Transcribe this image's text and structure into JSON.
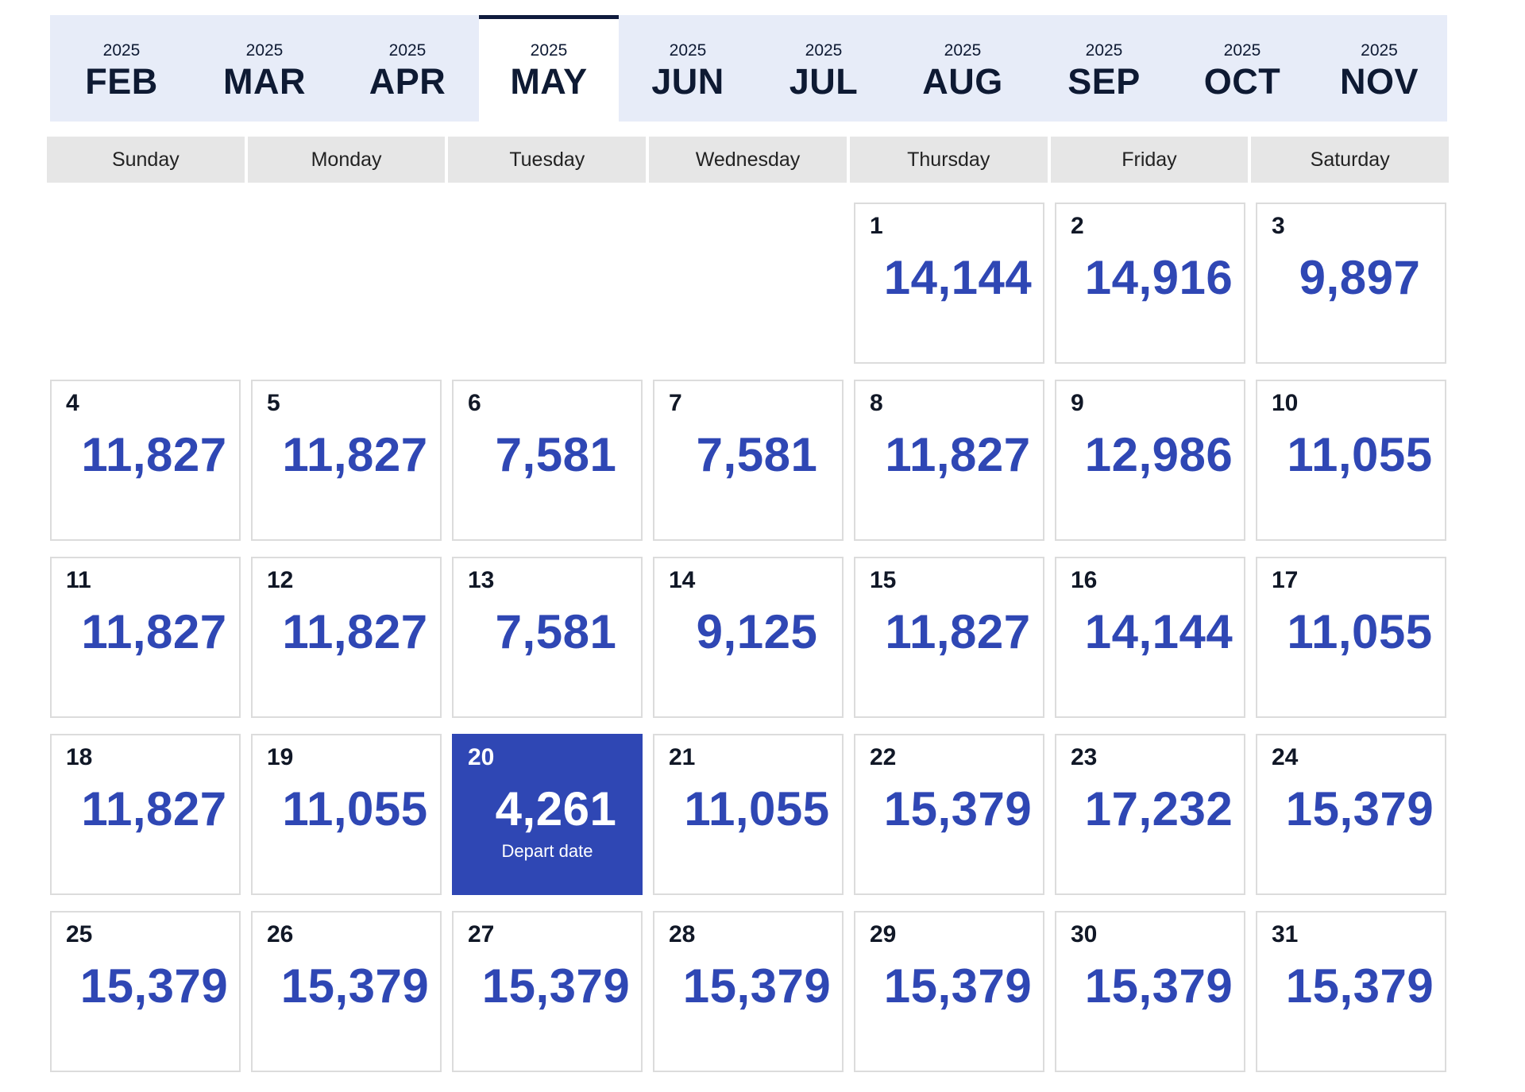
{
  "months": [
    {
      "year": "2025",
      "name": "FEB",
      "active": false
    },
    {
      "year": "2025",
      "name": "MAR",
      "active": false
    },
    {
      "year": "2025",
      "name": "APR",
      "active": false
    },
    {
      "year": "2025",
      "name": "MAY",
      "active": true
    },
    {
      "year": "2025",
      "name": "JUN",
      "active": false
    },
    {
      "year": "2025",
      "name": "JUL",
      "active": false
    },
    {
      "year": "2025",
      "name": "AUG",
      "active": false
    },
    {
      "year": "2025",
      "name": "SEP",
      "active": false
    },
    {
      "year": "2025",
      "name": "OCT",
      "active": false
    },
    {
      "year": "2025",
      "name": "NOV",
      "active": false
    }
  ],
  "weekdays": [
    "Sunday",
    "Monday",
    "Tuesday",
    "Wednesday",
    "Thursday",
    "Friday",
    "Saturday"
  ],
  "calendar": {
    "leading_blanks": 4,
    "selected_day": "20",
    "selected_note": "Depart date",
    "days": [
      {
        "day": "1",
        "price": "14,144"
      },
      {
        "day": "2",
        "price": "14,916"
      },
      {
        "day": "3",
        "price": "9,897"
      },
      {
        "day": "4",
        "price": "11,827"
      },
      {
        "day": "5",
        "price": "11,827"
      },
      {
        "day": "6",
        "price": "7,581"
      },
      {
        "day": "7",
        "price": "7,581"
      },
      {
        "day": "8",
        "price": "11,827"
      },
      {
        "day": "9",
        "price": "12,986"
      },
      {
        "day": "10",
        "price": "11,055"
      },
      {
        "day": "11",
        "price": "11,827"
      },
      {
        "day": "12",
        "price": "11,827"
      },
      {
        "day": "13",
        "price": "7,581"
      },
      {
        "day": "14",
        "price": "9,125"
      },
      {
        "day": "15",
        "price": "11,827"
      },
      {
        "day": "16",
        "price": "14,144"
      },
      {
        "day": "17",
        "price": "11,055"
      },
      {
        "day": "18",
        "price": "11,827"
      },
      {
        "day": "19",
        "price": "11,055"
      },
      {
        "day": "20",
        "price": "4,261"
      },
      {
        "day": "21",
        "price": "11,055"
      },
      {
        "day": "22",
        "price": "15,379"
      },
      {
        "day": "23",
        "price": "17,232"
      },
      {
        "day": "24",
        "price": "15,379"
      },
      {
        "day": "25",
        "price": "15,379"
      },
      {
        "day": "26",
        "price": "15,379"
      },
      {
        "day": "27",
        "price": "15,379"
      },
      {
        "day": "28",
        "price": "15,379"
      },
      {
        "day": "29",
        "price": "15,379"
      },
      {
        "day": "30",
        "price": "15,379"
      },
      {
        "day": "31",
        "price": "15,379"
      }
    ]
  },
  "colors": {
    "price": "#2f47b4",
    "selected_bg": "#2f47b4",
    "tab_bar_bg": "#e7ecf8",
    "weekday_bg": "#e6e6e6"
  }
}
